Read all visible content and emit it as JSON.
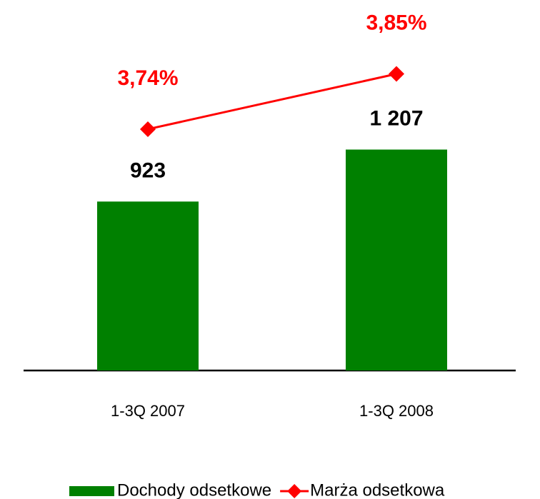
{
  "chart_data": {
    "type": "bar",
    "categories": [
      "1-3Q 2007",
      "1-3Q 2008"
    ],
    "series": [
      {
        "name": "Dochody odsetkowe",
        "type": "bar",
        "color": "#008000",
        "values": [
          923,
          1207
        ],
        "value_labels": [
          "923",
          "1 207"
        ]
      },
      {
        "name": "Marża odsetkowa",
        "type": "line",
        "axis": "y2",
        "color": "#ff0000",
        "values": [
          3.74,
          3.85
        ],
        "value_labels": [
          "3,74%",
          "3,85%"
        ]
      }
    ],
    "ylim": [
      0,
      1950
    ],
    "y2lim": [
      3.26,
      3.97
    ],
    "grid": false,
    "legend": "bottom"
  }
}
